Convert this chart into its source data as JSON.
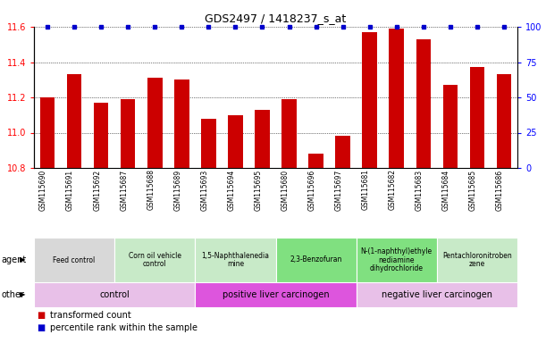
{
  "title": "GDS2497 / 1418237_s_at",
  "samples": [
    "GSM115690",
    "GSM115691",
    "GSM115692",
    "GSM115687",
    "GSM115688",
    "GSM115689",
    "GSM115693",
    "GSM115694",
    "GSM115695",
    "GSM115680",
    "GSM115696",
    "GSM115697",
    "GSM115681",
    "GSM115682",
    "GSM115683",
    "GSM115684",
    "GSM115685",
    "GSM115686"
  ],
  "values": [
    11.2,
    11.33,
    11.17,
    11.19,
    11.31,
    11.3,
    11.08,
    11.1,
    11.13,
    11.19,
    10.88,
    10.98,
    11.57,
    11.59,
    11.53,
    11.27,
    11.37,
    11.33
  ],
  "percentile": [
    100,
    100,
    100,
    100,
    100,
    100,
    100,
    100,
    100,
    100,
    100,
    100,
    100,
    100,
    100,
    100,
    100,
    100
  ],
  "bar_color": "#cc0000",
  "dot_color": "#0000cc",
  "ylim_left": [
    10.8,
    11.6
  ],
  "ylim_right": [
    0,
    100
  ],
  "yticks_left": [
    10.8,
    11.0,
    11.2,
    11.4,
    11.6
  ],
  "yticks_right": [
    0,
    25,
    50,
    75,
    100
  ],
  "agent_groups": [
    {
      "label": "Feed control",
      "start": 0,
      "end": 3,
      "color": "#d8d8d8"
    },
    {
      "label": "Corn oil vehicle\ncontrol",
      "start": 3,
      "end": 6,
      "color": "#c8eac8"
    },
    {
      "label": "1,5-Naphthalenedia\nmine",
      "start": 6,
      "end": 9,
      "color": "#c8eac8"
    },
    {
      "label": "2,3-Benzofuran",
      "start": 9,
      "end": 12,
      "color": "#80e080"
    },
    {
      "label": "N-(1-naphthyl)ethyle\nnediamine\ndihydrochloride",
      "start": 12,
      "end": 15,
      "color": "#80e080"
    },
    {
      "label": "Pentachloronitroben\nzene",
      "start": 15,
      "end": 18,
      "color": "#c8eac8"
    }
  ],
  "other_groups": [
    {
      "label": "control",
      "start": 0,
      "end": 6,
      "color": "#e8c0e8"
    },
    {
      "label": "positive liver carcinogen",
      "start": 6,
      "end": 12,
      "color": "#dd55dd"
    },
    {
      "label": "negative liver carcinogen",
      "start": 12,
      "end": 18,
      "color": "#e8c0e8"
    }
  ],
  "legend_items": [
    {
      "label": "transformed count",
      "color": "#cc0000"
    },
    {
      "label": "percentile rank within the sample",
      "color": "#0000cc"
    }
  ]
}
